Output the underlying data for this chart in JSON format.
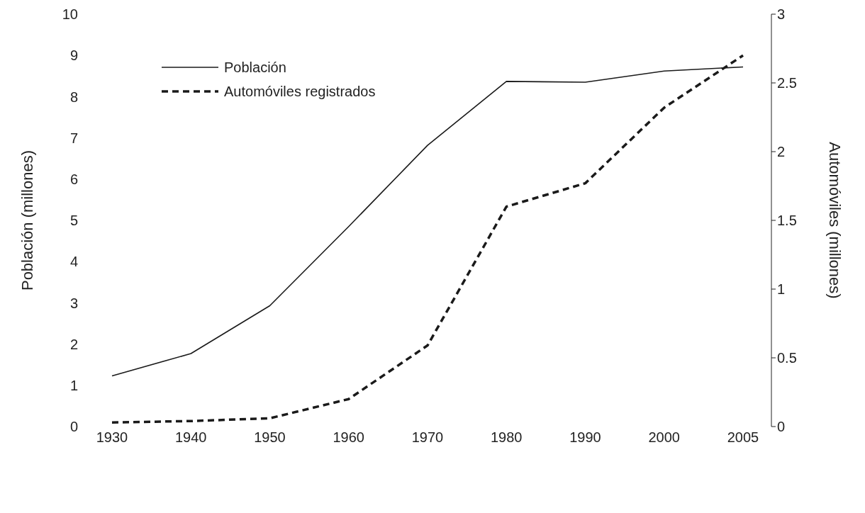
{
  "chart_data": {
    "type": "line",
    "categories": [
      "1930",
      "1940",
      "1950",
      "1960",
      "1970",
      "1980",
      "1990",
      "2000",
      "2005"
    ],
    "ylabel": "Población (millones)",
    "y2label": "Automóviles (millones)",
    "ylim": [
      0,
      10
    ],
    "yticks": [
      0,
      1,
      2,
      3,
      4,
      5,
      6,
      7,
      8,
      9,
      10
    ],
    "y2lim": [
      0,
      3
    ],
    "y2ticks": [
      0,
      0.5,
      1,
      1.5,
      2,
      2.5,
      3
    ],
    "series": [
      {
        "name": "Población",
        "color": "#1a1a1a",
        "line_style": "solid",
        "values": [
          1.23,
          1.77,
          2.93,
          4.85,
          6.82,
          8.37,
          8.35,
          8.62,
          8.72
        ]
      },
      {
        "name": "Automóviles registrados",
        "color": "#1a1a1a",
        "line_style": "dashed",
        "axis": "y2",
        "values": [
          0.03,
          0.04,
          0.06,
          0.2,
          0.59,
          1.6,
          1.77,
          2.32,
          2.7
        ]
      }
    ],
    "legend": "top left",
    "grid": false,
    "marker": "none"
  }
}
